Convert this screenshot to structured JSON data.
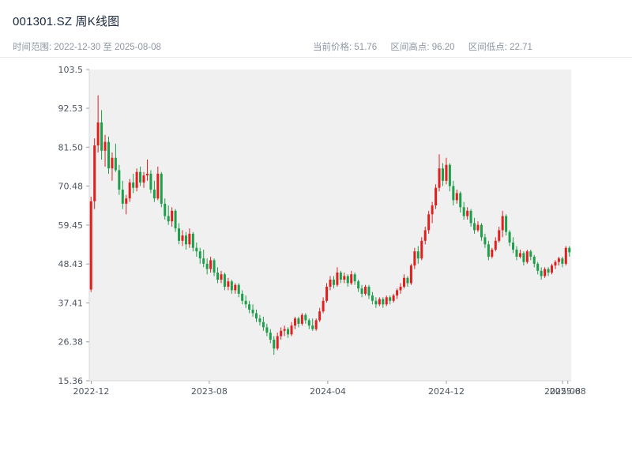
{
  "header": {
    "title": "001301.SZ 周K线图",
    "time_range": "时间范围: 2022-12-30 至 2025-08-08",
    "stats": {
      "current": "当前价格: 51.76",
      "high": "区间高点: 96.20",
      "low": "区间低点: 22.71"
    }
  },
  "chart_data": {
    "type": "candlestick",
    "title": "001301.SZ 周K线图",
    "frequency": "weekly",
    "x_range": [
      "2022-12-30",
      "2025-08-08"
    ],
    "current_price": 51.76,
    "range_high": 96.2,
    "range_low": 22.71,
    "ylim": [
      15.36,
      103.5
    ],
    "y_ticks": [
      "103.5",
      "92.53",
      "81.50",
      "70.48",
      "59.45",
      "48.43",
      "37.41",
      "26.38",
      "15.36"
    ],
    "x_ticks": [
      {
        "label": "2022-12",
        "pos": 0.004
      },
      {
        "label": "2023-08",
        "pos": 0.249
      },
      {
        "label": "2024-04",
        "pos": 0.495
      },
      {
        "label": "2024-12",
        "pos": 0.741
      },
      {
        "label": "2025-08",
        "pos": 0.982
      },
      {
        "label": "2025-08",
        "pos": 0.993
      }
    ],
    "up_color": "#e02020",
    "down_color": "#1e9e4a",
    "plot_bg": "#f0f0f0",
    "grid": false,
    "legend": "none",
    "candles": [
      [
        41.2,
        67.5,
        40.5,
        66.2
      ],
      [
        66.2,
        84.0,
        64.0,
        82.0
      ],
      [
        82.0,
        96.2,
        80.0,
        88.5
      ],
      [
        88.5,
        92.0,
        78.0,
        80.5
      ],
      [
        80.5,
        85.0,
        76.0,
        83.0
      ],
      [
        83.0,
        84.5,
        74.0,
        75.5
      ],
      [
        75.5,
        80.0,
        72.0,
        78.5
      ],
      [
        78.5,
        82.5,
        74.5,
        75.0
      ],
      [
        75.0,
        76.5,
        68.0,
        69.5
      ],
      [
        69.5,
        72.0,
        64.0,
        65.5
      ],
      [
        65.5,
        68.0,
        62.5,
        67.0
      ],
      [
        67.0,
        72.5,
        66.0,
        71.5
      ],
      [
        71.5,
        74.0,
        68.5,
        70.0
      ],
      [
        70.0,
        75.5,
        69.0,
        74.5
      ],
      [
        74.5,
        76.0,
        70.5,
        71.5
      ],
      [
        71.5,
        74.5,
        70.0,
        73.5
      ],
      [
        73.5,
        78.0,
        72.0,
        74.0
      ],
      [
        74.0,
        75.0,
        68.5,
        69.5
      ],
      [
        69.5,
        72.0,
        66.0,
        67.0
      ],
      [
        67.0,
        76.0,
        66.5,
        74.0
      ],
      [
        74.0,
        74.5,
        64.5,
        65.5
      ],
      [
        65.5,
        67.0,
        61.0,
        62.0
      ],
      [
        62.0,
        65.0,
        59.5,
        60.5
      ],
      [
        60.5,
        64.5,
        59.0,
        63.5
      ],
      [
        63.5,
        64.0,
        57.5,
        58.5
      ],
      [
        58.5,
        60.0,
        54.0,
        55.0
      ],
      [
        55.0,
        58.0,
        53.5,
        56.5
      ],
      [
        56.5,
        57.5,
        52.5,
        54.0
      ],
      [
        54.0,
        58.5,
        53.0,
        57.0
      ],
      [
        57.0,
        57.5,
        52.0,
        53.0
      ],
      [
        53.0,
        54.5,
        50.5,
        52.0
      ],
      [
        52.0,
        53.0,
        48.5,
        50.0
      ],
      [
        50.0,
        52.5,
        47.5,
        48.5
      ],
      [
        48.5,
        50.0,
        45.5,
        47.0
      ],
      [
        47.0,
        50.5,
        46.0,
        49.5
      ],
      [
        49.5,
        50.0,
        45.0,
        46.0
      ],
      [
        46.0,
        47.5,
        43.0,
        44.0
      ],
      [
        44.0,
        46.5,
        43.0,
        45.5
      ],
      [
        45.5,
        46.0,
        41.0,
        42.0
      ],
      [
        42.0,
        44.5,
        41.0,
        43.5
      ],
      [
        43.5,
        44.0,
        40.0,
        41.0
      ],
      [
        41.0,
        43.0,
        40.0,
        42.5
      ],
      [
        42.5,
        43.0,
        39.0,
        40.0
      ],
      [
        40.0,
        41.0,
        37.0,
        38.0
      ],
      [
        38.0,
        39.5,
        36.0,
        37.0
      ],
      [
        37.0,
        38.0,
        34.5,
        35.5
      ],
      [
        35.5,
        37.0,
        33.5,
        34.5
      ],
      [
        34.5,
        35.5,
        32.0,
        33.0
      ],
      [
        33.0,
        34.0,
        31.0,
        32.0
      ],
      [
        32.0,
        33.5,
        29.5,
        30.5
      ],
      [
        30.5,
        31.5,
        28.0,
        29.0
      ],
      [
        29.0,
        30.0,
        26.0,
        27.0
      ],
      [
        27.0,
        28.0,
        22.71,
        24.5
      ],
      [
        24.5,
        29.0,
        24.0,
        28.0
      ],
      [
        28.0,
        30.5,
        27.0,
        29.5
      ],
      [
        29.5,
        31.0,
        28.0,
        30.0
      ],
      [
        30.0,
        30.5,
        27.5,
        28.5
      ],
      [
        28.5,
        32.0,
        28.0,
        31.0
      ],
      [
        31.0,
        33.5,
        30.0,
        33.0
      ],
      [
        33.0,
        33.5,
        30.5,
        31.5
      ],
      [
        31.5,
        34.5,
        31.0,
        34.0
      ],
      [
        34.0,
        34.5,
        31.5,
        32.5
      ],
      [
        32.5,
        33.0,
        30.0,
        31.0
      ],
      [
        31.0,
        33.0,
        29.5,
        30.0
      ],
      [
        30.0,
        33.0,
        29.5,
        32.5
      ],
      [
        32.5,
        36.0,
        32.0,
        35.0
      ],
      [
        35.0,
        39.0,
        34.5,
        38.0
      ],
      [
        38.0,
        43.0,
        37.5,
        42.0
      ],
      [
        42.0,
        45.0,
        41.0,
        44.0
      ],
      [
        44.0,
        45.0,
        41.5,
        42.5
      ],
      [
        42.5,
        47.5,
        42.0,
        46.0
      ],
      [
        46.0,
        46.5,
        43.0,
        44.0
      ],
      [
        44.0,
        46.0,
        43.0,
        45.0
      ],
      [
        45.0,
        45.5,
        42.0,
        43.0
      ],
      [
        43.0,
        46.5,
        42.5,
        45.5
      ],
      [
        45.5,
        46.0,
        42.5,
        43.5
      ],
      [
        43.5,
        44.0,
        40.5,
        41.5
      ],
      [
        41.5,
        42.5,
        39.0,
        40.0
      ],
      [
        40.0,
        42.5,
        39.5,
        42.0
      ],
      [
        42.0,
        42.5,
        38.5,
        39.5
      ],
      [
        39.5,
        40.5,
        37.0,
        38.0
      ],
      [
        38.0,
        39.0,
        36.0,
        37.0
      ],
      [
        37.0,
        39.0,
        36.5,
        38.5
      ],
      [
        38.5,
        39.0,
        36.0,
        37.0
      ],
      [
        37.0,
        39.5,
        36.5,
        39.0
      ],
      [
        39.0,
        39.5,
        37.0,
        38.0
      ],
      [
        38.0,
        40.0,
        37.5,
        39.5
      ],
      [
        39.5,
        41.5,
        38.5,
        41.0
      ],
      [
        41.0,
        43.0,
        40.0,
        42.0
      ],
      [
        42.0,
        45.5,
        41.5,
        44.5
      ],
      [
        44.5,
        45.0,
        42.0,
        43.0
      ],
      [
        43.0,
        48.5,
        42.5,
        48.0
      ],
      [
        48.0,
        53.0,
        47.0,
        52.0
      ],
      [
        52.0,
        53.5,
        48.5,
        50.0
      ],
      [
        50.0,
        56.0,
        49.5,
        55.0
      ],
      [
        55.0,
        59.0,
        54.0,
        58.0
      ],
      [
        58.0,
        63.5,
        57.0,
        62.5
      ],
      [
        62.5,
        66.0,
        60.0,
        65.0
      ],
      [
        65.0,
        71.0,
        64.0,
        70.0
      ],
      [
        70.0,
        79.5,
        69.0,
        75.5
      ],
      [
        75.5,
        77.0,
        70.5,
        72.0
      ],
      [
        72.0,
        78.5,
        71.0,
        76.5
      ],
      [
        76.5,
        77.0,
        69.0,
        70.5
      ],
      [
        70.5,
        72.0,
        65.0,
        66.5
      ],
      [
        66.5,
        69.5,
        65.5,
        68.5
      ],
      [
        68.5,
        69.0,
        63.0,
        64.5
      ],
      [
        64.5,
        66.0,
        61.0,
        62.0
      ],
      [
        62.0,
        64.5,
        61.0,
        63.5
      ],
      [
        63.5,
        64.0,
        59.0,
        60.0
      ],
      [
        60.0,
        61.5,
        57.0,
        58.0
      ],
      [
        58.0,
        60.5,
        57.5,
        59.5
      ],
      [
        59.5,
        60.0,
        55.0,
        56.0
      ],
      [
        56.0,
        57.0,
        53.0,
        54.0
      ],
      [
        54.0,
        55.0,
        49.5,
        50.5
      ],
      [
        50.5,
        53.0,
        50.0,
        52.5
      ],
      [
        52.5,
        56.0,
        52.0,
        55.0
      ],
      [
        55.0,
        59.0,
        54.5,
        58.0
      ],
      [
        58.0,
        63.5,
        56.0,
        62.0
      ],
      [
        62.0,
        62.5,
        56.5,
        57.5
      ],
      [
        57.5,
        58.0,
        53.5,
        54.5
      ],
      [
        54.5,
        56.0,
        51.5,
        52.5
      ],
      [
        52.5,
        53.5,
        49.5,
        50.5
      ],
      [
        50.5,
        52.5,
        50.0,
        51.5
      ],
      [
        51.5,
        52.0,
        48.0,
        49.0
      ],
      [
        49.0,
        52.5,
        48.5,
        52.0
      ],
      [
        52.0,
        52.5,
        49.5,
        50.5
      ],
      [
        50.5,
        51.0,
        47.5,
        48.5
      ],
      [
        48.5,
        49.0,
        45.5,
        46.5
      ],
      [
        46.5,
        47.5,
        44.0,
        45.0
      ],
      [
        45.0,
        47.5,
        44.5,
        47.0
      ],
      [
        47.0,
        47.5,
        45.0,
        46.0
      ],
      [
        46.0,
        48.5,
        45.5,
        48.0
      ],
      [
        48.0,
        49.5,
        47.0,
        49.0
      ],
      [
        49.0,
        50.5,
        48.0,
        50.0
      ],
      [
        50.0,
        50.5,
        47.5,
        48.5
      ],
      [
        48.5,
        53.5,
        48.0,
        53.0
      ],
      [
        53.0,
        53.5,
        50.5,
        51.76
      ]
    ]
  }
}
